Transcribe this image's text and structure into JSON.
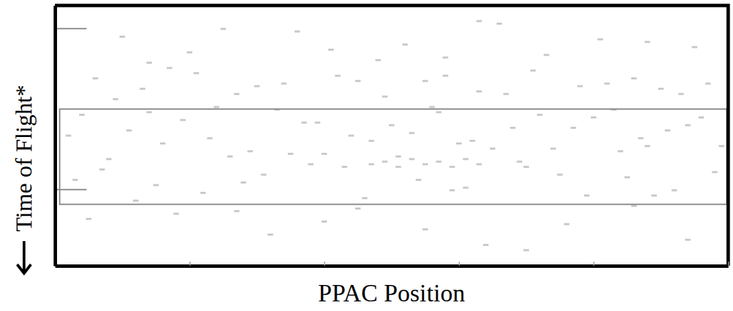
{
  "chart_data": {
    "type": "scatter",
    "x_label": "PPAC Position",
    "y_label": "Time of Flight*",
    "x": [
      6,
      13,
      21,
      27,
      34,
      42,
      49,
      55,
      63,
      71,
      78,
      86,
      93,
      97,
      9,
      17,
      30,
      45,
      58,
      67,
      82,
      90,
      4,
      11,
      16,
      24,
      29,
      37,
      44,
      51,
      57,
      62,
      68,
      74,
      80,
      87,
      94,
      99,
      8,
      19,
      33,
      40,
      53,
      60,
      72,
      84,
      91,
      2,
      14,
      26,
      39,
      47,
      56,
      65,
      77,
      88,
      96,
      23,
      35,
      50,
      69,
      83,
      7,
      15,
      22,
      31,
      38,
      46,
      54,
      61,
      70,
      79,
      85,
      92,
      98,
      12,
      28,
      43,
      59,
      75,
      89,
      3,
      10,
      20,
      36,
      48,
      52,
      66,
      73,
      81,
      95,
      25,
      58,
      88,
      41,
      14,
      63,
      18,
      32,
      45,
      64,
      76,
      86,
      5,
      55,
      94,
      27,
      70,
      40,
      47,
      49,
      51,
      53,
      55,
      57,
      59,
      61,
      63
    ],
    "values": [
      72,
      68,
      74,
      66,
      70,
      73,
      65,
      71,
      67,
      75,
      69,
      72,
      66,
      70,
      64,
      76,
      69,
      71,
      73,
      66,
      70,
      68,
      58,
      52,
      47,
      61,
      44,
      55,
      50,
      42,
      59,
      48,
      53,
      45,
      57,
      49,
      54,
      46,
      41,
      56,
      60,
      43,
      51,
      47,
      58,
      44,
      52,
      50,
      59,
      42,
      55,
      48,
      61,
      45,
      53,
      46,
      57,
      49,
      43,
      54,
      40,
      60,
      37,
      31,
      28,
      35,
      39,
      26,
      33,
      30,
      38,
      27,
      34,
      29,
      36,
      25,
      32,
      38,
      29,
      35,
      27,
      33,
      88,
      82,
      90,
      79,
      85,
      93,
      81,
      87,
      84,
      91,
      80,
      86,
      83,
      78,
      94,
      20,
      12,
      22,
      8,
      16,
      23,
      18,
      14,
      10,
      21,
      6,
      17,
      39,
      40,
      38,
      41,
      39,
      40,
      38,
      41,
      39
    ],
    "color": "#c8c8c8",
    "marker": "square",
    "xlim": [
      0,
      100
    ],
    "xticks": [
      20,
      40,
      60,
      80,
      100
    ],
    "ylim": [
      0,
      100
    ],
    "yticks": [],
    "tick_labels": false,
    "grid": false,
    "gate": {
      "x": [
        0.7,
        99.8
      ],
      "y": [
        23.6,
        60.2
      ]
    },
    "bracket": {
      "y": [
        29.3,
        91.1
      ]
    }
  }
}
